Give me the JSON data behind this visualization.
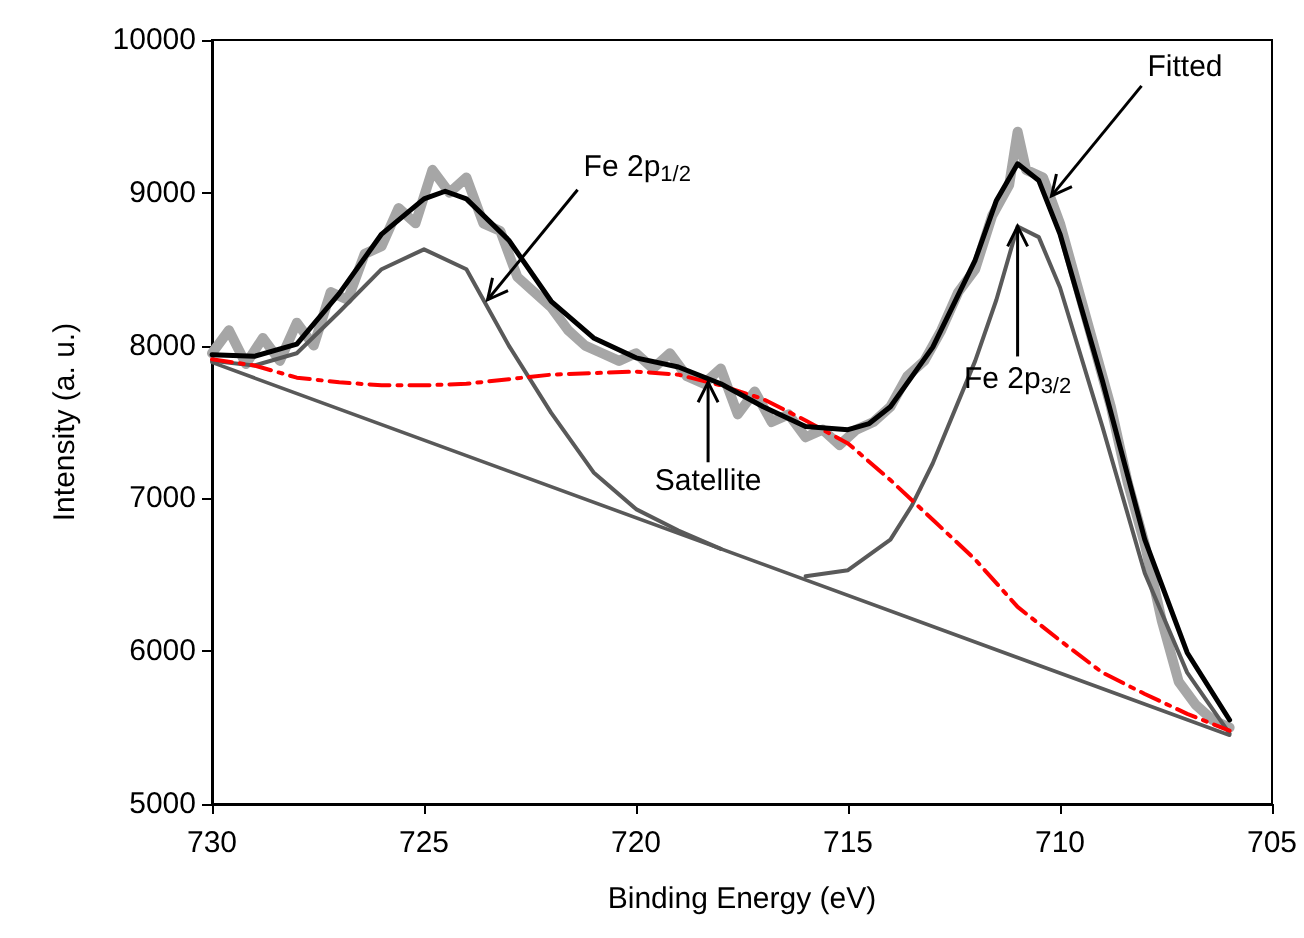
{
  "chart_data": {
    "type": "line",
    "xlabel": "Binding Energy (eV)",
    "ylabel": "Intensity (a. u.)",
    "xlim": [
      730,
      705
    ],
    "xticks": [
      730,
      725,
      720,
      715,
      710,
      705
    ],
    "ylim": [
      5000,
      10000
    ],
    "yticks": [
      5000,
      6000,
      7000,
      8000,
      9000,
      10000
    ],
    "grid": false,
    "marker": "none",
    "series": [
      {
        "color": "#a6a6a6",
        "x": [
          730,
          729.6,
          729.2,
          728.8,
          728.4,
          728,
          727.6,
          727.2,
          726.8,
          726.4,
          726,
          725.6,
          725.2,
          724.8,
          724.4,
          724,
          723.6,
          723.2,
          722.8,
          722.4,
          722,
          721.6,
          721.2,
          720.8,
          720.4,
          720,
          719.6,
          719.2,
          718.8,
          718.4,
          718,
          717.6,
          717.2,
          716.8,
          716.4,
          716,
          715.6,
          715.2,
          714.8,
          714.4,
          714,
          713.6,
          713.2,
          712.8,
          712.4,
          712,
          711.6,
          711.2,
          711,
          710.8,
          710.4,
          710,
          709.6,
          709.2,
          708.8,
          708.4,
          708,
          707.6,
          707.2,
          706.8,
          706.4,
          706
        ],
        "values": [
          7950,
          8100,
          7880,
          8050,
          7900,
          8150,
          8000,
          8350,
          8300,
          8600,
          8650,
          8900,
          8800,
          9150,
          9000,
          9100,
          8800,
          8750,
          8450,
          8350,
          8250,
          8100,
          8000,
          7950,
          7900,
          7950,
          7850,
          7950,
          7800,
          7750,
          7850,
          7550,
          7700,
          7500,
          7550,
          7400,
          7450,
          7350,
          7450,
          7500,
          7600,
          7800,
          7900,
          8100,
          8350,
          8500,
          8850,
          9050,
          9400,
          9150,
          9100,
          8800,
          8400,
          8000,
          7600,
          7100,
          6700,
          6200,
          5800,
          5650,
          5550,
          5500
        ]
      },
      {
        "color": "#595959",
        "x": [
          730,
          706
        ],
        "values": [
          7890,
          5450
        ]
      },
      {
        "color": "#595959",
        "x": [
          730,
          729,
          728,
          727,
          726,
          725,
          724,
          723.6,
          723,
          722,
          721,
          720,
          719,
          718
        ],
        "values": [
          7900,
          7870,
          7950,
          8220,
          8500,
          8630,
          8500,
          8300,
          8000,
          7560,
          7170,
          6930,
          6790,
          6670
        ]
      },
      {
        "color": "#595959",
        "x": [
          716,
          715,
          714,
          713.5,
          713,
          712,
          711.5,
          711,
          710.5,
          710,
          709,
          708,
          707,
          706
        ],
        "values": [
          6490,
          6530,
          6730,
          6950,
          7230,
          7900,
          8300,
          8780,
          8710,
          8380,
          7470,
          6510,
          5860,
          5460
        ]
      },
      {
        "color": "#ff0000",
        "line_style": "dashed",
        "x": [
          730,
          729,
          728,
          727,
          726,
          725,
          724,
          723,
          722,
          721,
          720,
          719,
          718,
          717,
          716,
          715,
          714,
          713,
          712,
          711,
          710,
          709,
          708,
          707,
          706
        ],
        "values": [
          7910,
          7870,
          7790,
          7760,
          7740,
          7740,
          7750,
          7780,
          7810,
          7820,
          7830,
          7810,
          7740,
          7650,
          7510,
          7360,
          7120,
          6860,
          6600,
          6290,
          6070,
          5860,
          5720,
          5590,
          5480
        ]
      },
      {
        "color": "#000000",
        "x": [
          730,
          729,
          728,
          727,
          726,
          725,
          724.5,
          724,
          723,
          722,
          721,
          720,
          719,
          718,
          717,
          716,
          715,
          714.5,
          714,
          713,
          712,
          711.5,
          711,
          710.5,
          710,
          709,
          708,
          707,
          706
        ],
        "values": [
          7940,
          7930,
          8010,
          8340,
          8730,
          8960,
          9010,
          8960,
          8690,
          8290,
          8050,
          7920,
          7860,
          7750,
          7600,
          7470,
          7450,
          7490,
          7600,
          7990,
          8560,
          8950,
          9190,
          9080,
          8730,
          7770,
          6730,
          5990,
          5550
        ]
      }
    ],
    "annotations": [
      {
        "text": "Fe 2p$_{1/2}$",
        "x": 723.5,
        "y": 8300
      },
      {
        "text": "Satellite",
        "x": 718.3,
        "y": 7760
      },
      {
        "text": "Fe 2p$_{3/2}$",
        "x": 711,
        "y": 8780
      },
      {
        "text": "Fitted",
        "x": 710.2,
        "y": 8980
      }
    ]
  }
}
